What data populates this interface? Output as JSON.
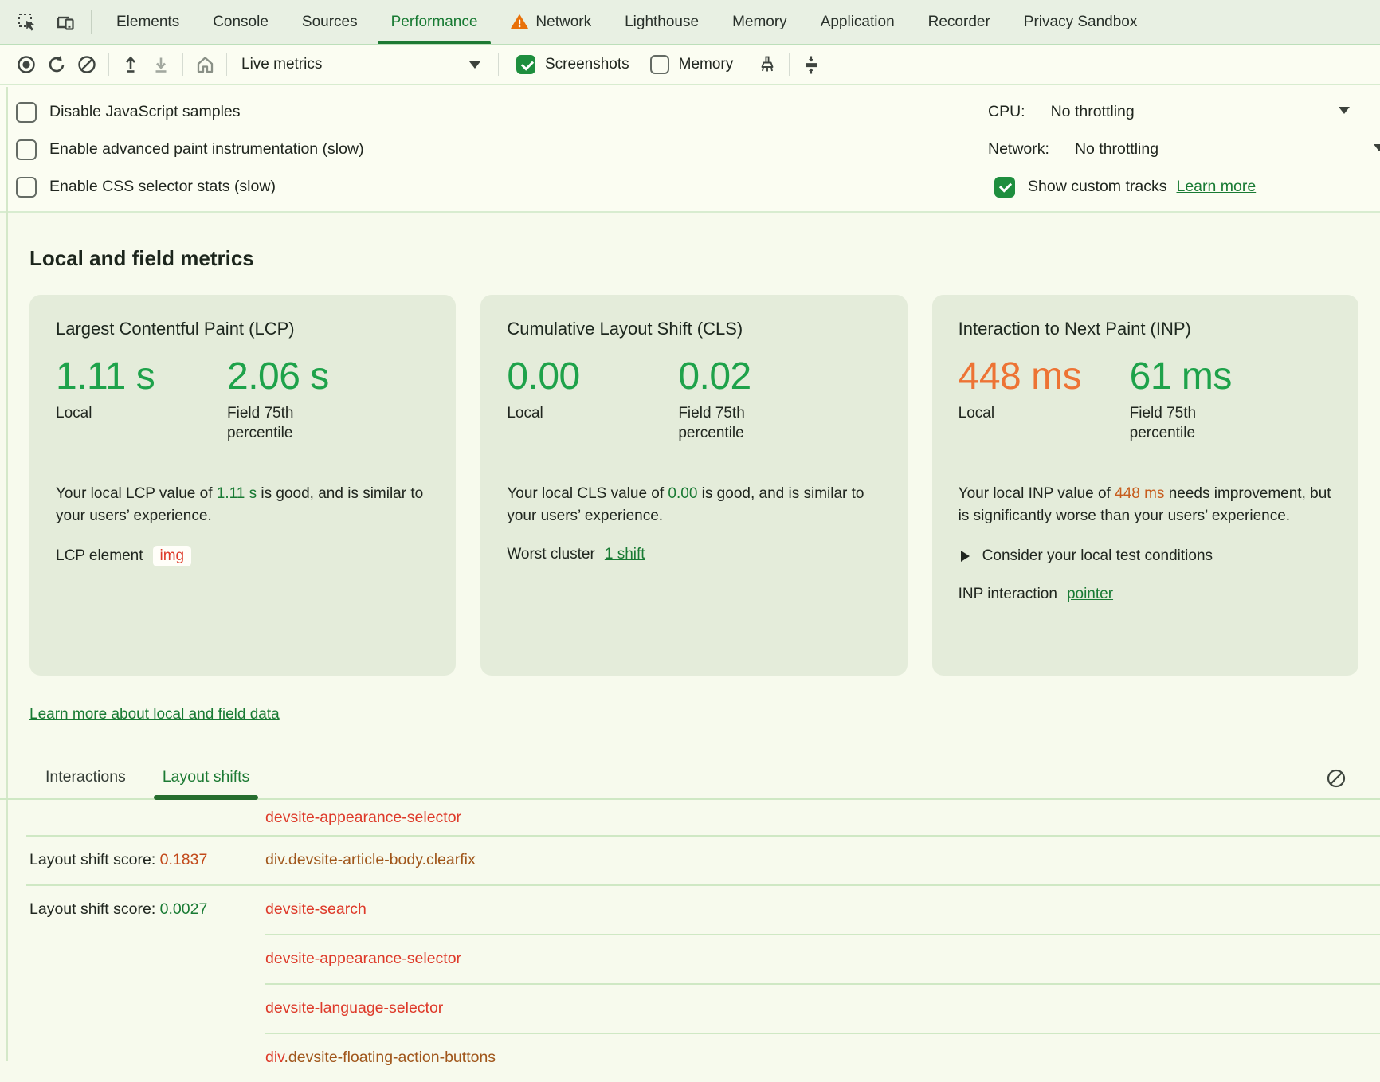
{
  "colors": {
    "accent_green": "#187a33",
    "metric_good_green": "#1ea24a",
    "metric_bad_orange": "#ed7334",
    "warning_orange": "#e8710a",
    "error_red": "#de3a2a",
    "element_brown": "#a0561b"
  },
  "tabbar": {
    "tabs": [
      {
        "label": "Elements",
        "active": false,
        "warning": false
      },
      {
        "label": "Console",
        "active": false,
        "warning": false
      },
      {
        "label": "Sources",
        "active": false,
        "warning": false
      },
      {
        "label": "Performance",
        "active": true,
        "warning": false
      },
      {
        "label": "Network",
        "active": false,
        "warning": true
      },
      {
        "label": "Lighthouse",
        "active": false,
        "warning": false
      },
      {
        "label": "Memory",
        "active": false,
        "warning": false
      },
      {
        "label": "Application",
        "active": false,
        "warning": false
      },
      {
        "label": "Recorder",
        "active": false,
        "warning": false
      },
      {
        "label": "Privacy Sandbox",
        "active": false,
        "warning": false
      }
    ]
  },
  "toolbar": {
    "live_metrics": "Live metrics",
    "screenshots": "Screenshots",
    "screenshots_checked": true,
    "memory": "Memory",
    "memory_checked": false
  },
  "options": {
    "checkboxes": [
      {
        "label": "Disable JavaScript samples",
        "checked": false
      },
      {
        "label": "Enable advanced paint instrumentation (slow)",
        "checked": false
      },
      {
        "label": "Enable CSS selector stats (slow)",
        "checked": false
      }
    ],
    "cpu_label": "CPU:",
    "cpu_value": "No throttling",
    "network_label": "Network:",
    "network_value": "No throttling",
    "custom_tracks_label": "Show custom tracks",
    "custom_tracks_checked": true,
    "learn_more": "Learn more"
  },
  "metrics": {
    "heading": "Local and field metrics",
    "local_label": "Local",
    "field_label": "Field 75th percentile",
    "cards": [
      {
        "title": "Largest Contentful Paint (LCP)",
        "local_value": "1.11 s",
        "field_value": "2.06 s",
        "desc_prefix": "Your local LCP value of ",
        "desc_value": "1.11 s",
        "desc_suffix": " is good, and is similar to your users’ experience.",
        "extra_label": "LCP element",
        "chip": "img"
      },
      {
        "title": "Cumulative Layout Shift (CLS)",
        "local_value": "0.00",
        "field_value": "0.02",
        "desc_prefix": "Your local CLS value of ",
        "desc_value": "0.00",
        "desc_suffix": " is good, and is similar to your users’ experience.",
        "extra_label": "Worst cluster",
        "link": "1 shift"
      },
      {
        "title": "Interaction to Next Paint (INP)",
        "local_value": "448 ms",
        "field_value": "61 ms",
        "desc_prefix": "Your local INP value of ",
        "desc_value": "448 ms",
        "desc_suffix": " needs improvement, but is significantly worse than your users’ experience.",
        "disclosure": "Consider your local test conditions",
        "extra_label": "INP interaction",
        "link": "pointer"
      }
    ],
    "learn_more": "Learn more about local and field data"
  },
  "log": {
    "tabs": [
      {
        "label": "Interactions",
        "active": false
      },
      {
        "label": "Layout shifts",
        "active": true
      }
    ],
    "score_label": "Layout shift score: ",
    "rows": [
      {
        "score": "",
        "score_class": "",
        "element_parts": [
          {
            "text": "devsite-appearance-selector",
            "cls": "red"
          }
        ]
      },
      {
        "score": "0.1837",
        "score_class": "orange",
        "element_parts": [
          {
            "text": "div.devsite-article-body.clearfix",
            "cls": "brown"
          }
        ]
      },
      {
        "score": "0.0027",
        "score_class": "green",
        "element_parts": [
          {
            "text": "devsite-search",
            "cls": "red"
          }
        ]
      },
      {
        "score": "",
        "score_class": "",
        "element_parts": [
          {
            "text": "devsite-appearance-selector",
            "cls": "red"
          }
        ]
      },
      {
        "score": "",
        "score_class": "",
        "element_parts": [
          {
            "text": "devsite-language-selector",
            "cls": "red"
          }
        ]
      },
      {
        "score": "",
        "score_class": "",
        "element_parts": [
          {
            "text": "div",
            "cls": "red"
          },
          {
            "text": ".devsite-floating-action-buttons",
            "cls": "brown"
          }
        ]
      }
    ]
  }
}
